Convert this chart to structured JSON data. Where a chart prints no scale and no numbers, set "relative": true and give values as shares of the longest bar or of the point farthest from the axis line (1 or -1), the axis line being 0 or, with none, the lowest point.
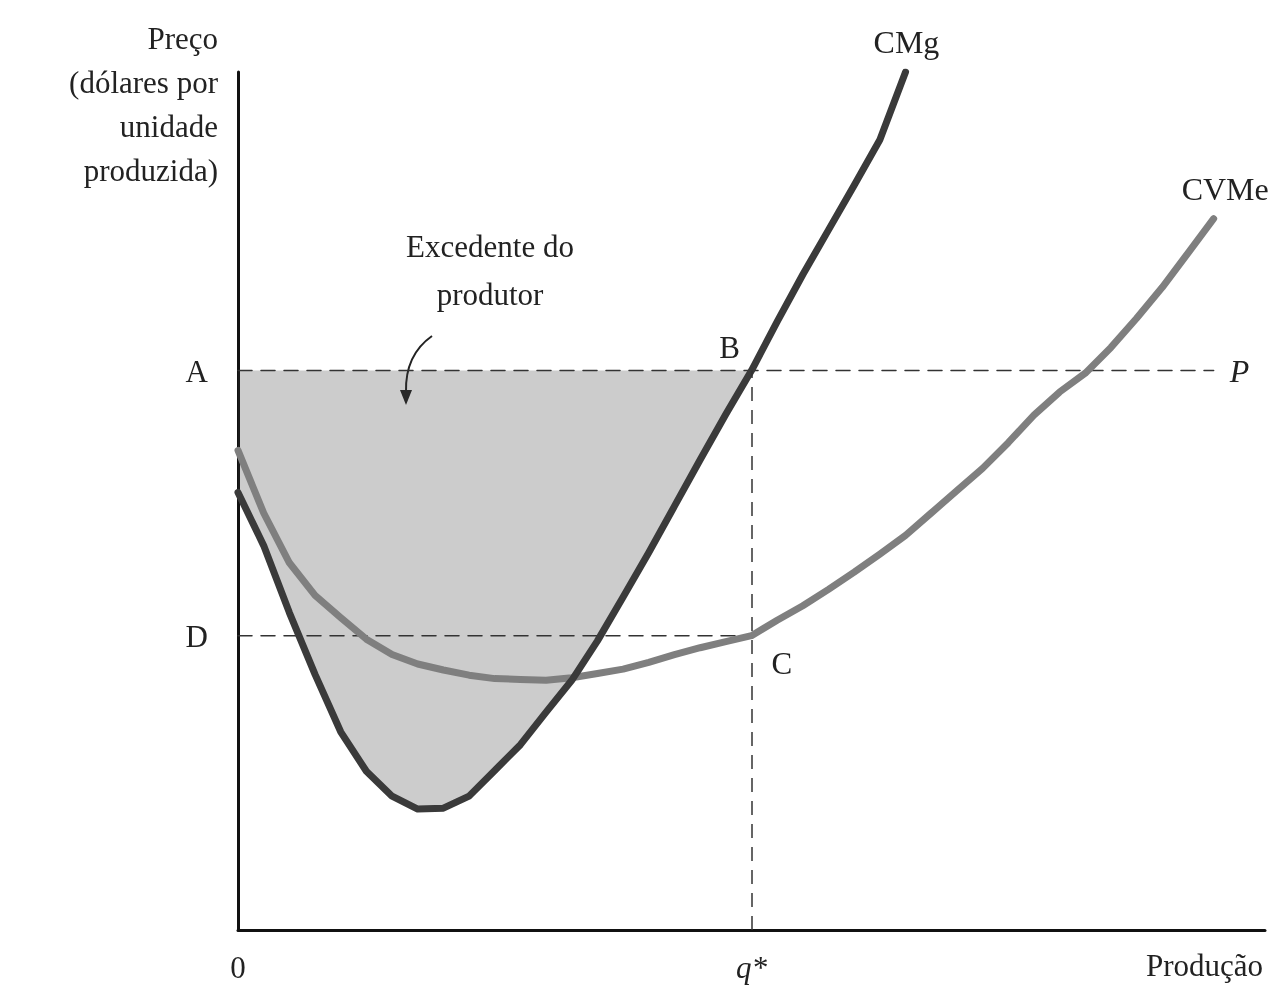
{
  "chart_data": {
    "type": "line",
    "relative": true,
    "ylabel": "Preço\n(dólares por\nunidade\nproduzida)",
    "xlabel": "Produção",
    "grid": false,
    "legend": false,
    "marker": "none",
    "categories": [
      "0",
      null,
      null,
      null,
      null,
      null,
      null,
      null,
      null,
      null,
      null,
      null,
      null,
      null,
      null,
      null,
      null,
      null,
      null,
      null,
      "q*",
      null,
      null,
      null,
      null,
      null,
      null,
      null,
      null,
      null,
      null,
      null,
      null,
      null,
      null,
      null,
      null,
      null,
      null,
      null,
      null
    ],
    "series": [
      {
        "name": "P",
        "color": "#333333",
        "line_style": "dashed",
        "values": [
          0.652,
          0.652,
          0.652,
          0.652,
          0.652,
          0.652,
          0.652,
          0.652,
          0.652,
          0.652,
          0.652,
          0.652,
          0.652,
          0.652,
          0.652,
          0.652,
          0.652,
          0.652,
          0.652,
          0.652,
          0.652,
          0.652,
          0.652,
          0.652,
          0.652,
          0.652,
          0.652,
          0.652,
          0.652,
          0.652,
          0.652,
          0.652,
          0.652,
          0.652,
          0.652,
          0.652,
          0.652,
          0.652,
          0.652,
          null,
          null
        ]
      },
      {
        "color": "#333333",
        "line_style": "dashed",
        "values": [
          0.343,
          0.343,
          0.343,
          0.343,
          0.343,
          0.343,
          0.343,
          0.343,
          0.343,
          0.343,
          0.343,
          0.343,
          0.343,
          0.343,
          0.343,
          0.343,
          0.343,
          0.343,
          0.343,
          0.343,
          0.343,
          null,
          null,
          null,
          null,
          null,
          null,
          null,
          null,
          null,
          null,
          null,
          null,
          null,
          null,
          null,
          null,
          null,
          null,
          null,
          null
        ]
      },
      {
        "name": "CVMe",
        "color": "#7f7f7f",
        "line_style": "solid",
        "values": [
          0.559,
          0.486,
          0.428,
          0.39,
          0.364,
          0.339,
          0.321,
          0.31,
          0.303,
          0.297,
          0.293,
          0.292,
          0.291,
          0.294,
          0.299,
          0.304,
          0.312,
          0.321,
          0.329,
          0.336,
          0.343,
          0.361,
          0.378,
          0.397,
          0.417,
          0.438,
          0.46,
          0.486,
          0.512,
          0.538,
          0.568,
          0.6,
          0.627,
          0.649,
          0.679,
          0.713,
          0.749,
          0.789,
          0.829,
          null,
          null
        ]
      },
      {
        "name": "CMg",
        "color": "#3a3a3a",
        "line_style": "solid",
        "values": [
          0.51,
          0.448,
          0.37,
          0.298,
          0.231,
          0.185,
          0.156,
          0.141,
          0.142,
          0.156,
          0.186,
          0.216,
          0.254,
          0.291,
          0.337,
          0.388,
          0.44,
          0.494,
          0.548,
          0.601,
          0.652,
          0.709,
          0.764,
          0.816,
          0.868,
          0.921,
          1.0,
          null,
          null,
          null,
          null,
          null,
          null,
          null,
          null,
          null,
          null,
          null,
          null,
          null,
          null
        ],
        "lower": [
          0.51,
          0.448,
          0.37,
          0.298,
          0.231,
          0.185,
          0.156,
          0.141,
          0.142,
          0.156,
          0.186,
          0.216,
          0.254,
          0.291,
          0.337,
          0.388,
          0.44,
          0.494,
          0.548,
          0.601,
          0.652,
          null,
          null,
          null,
          null,
          null,
          null,
          null,
          null,
          null,
          null,
          null,
          null,
          null,
          null,
          null,
          null,
          null,
          null,
          null,
          null
        ],
        "upper": [
          0.652,
          0.652,
          0.652,
          0.652,
          0.652,
          0.652,
          0.652,
          0.652,
          0.652,
          0.652,
          0.652,
          0.652,
          0.652,
          0.652,
          0.652,
          0.652,
          0.652,
          0.652,
          0.652,
          0.652,
          0.652,
          null,
          null,
          null,
          null,
          null,
          null,
          null,
          null,
          null,
          null,
          null,
          null,
          null,
          null,
          null,
          null,
          null,
          null,
          null,
          null
        ]
      }
    ],
    "ref_lines": [
      {
        "axis": "x",
        "value": "q*",
        "color": "#333333",
        "line_style": "dashed"
      }
    ],
    "annotations": [
      "Excedente do\nprodutor",
      "A",
      "D",
      {
        "text": "B",
        "x": "q*",
        "y": 0.652
      },
      {
        "text": "C",
        "x": "q*",
        "y": 0.343
      }
    ]
  }
}
